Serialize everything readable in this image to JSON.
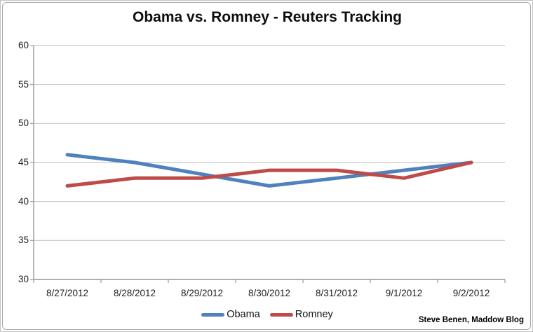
{
  "chart_data": {
    "type": "line",
    "title": "Obama vs. Romney - Reuters Tracking",
    "categories": [
      "8/27/2012",
      "8/28/2012",
      "8/29/2012",
      "8/30/2012",
      "8/31/2012",
      "9/1/2012",
      "9/2/2012"
    ],
    "series": [
      {
        "name": "Obama",
        "color": "#4F81BD",
        "values": [
          46,
          45,
          43.5,
          42,
          43,
          44,
          45
        ]
      },
      {
        "name": "Romney",
        "color": "#BE4B48",
        "values": [
          42,
          43,
          43,
          44,
          44,
          43,
          45
        ]
      }
    ],
    "ylim": [
      30,
      60
    ],
    "yticks": [
      60,
      55,
      50,
      45,
      40,
      35,
      30
    ],
    "ytick_step": 5,
    "grid": true,
    "legend_position": "bottom",
    "gridline_color": "#c6c6c6",
    "axis_color": "#9b9b9b"
  },
  "attribution": {
    "text": "Steve Benen, Maddow Blog"
  }
}
